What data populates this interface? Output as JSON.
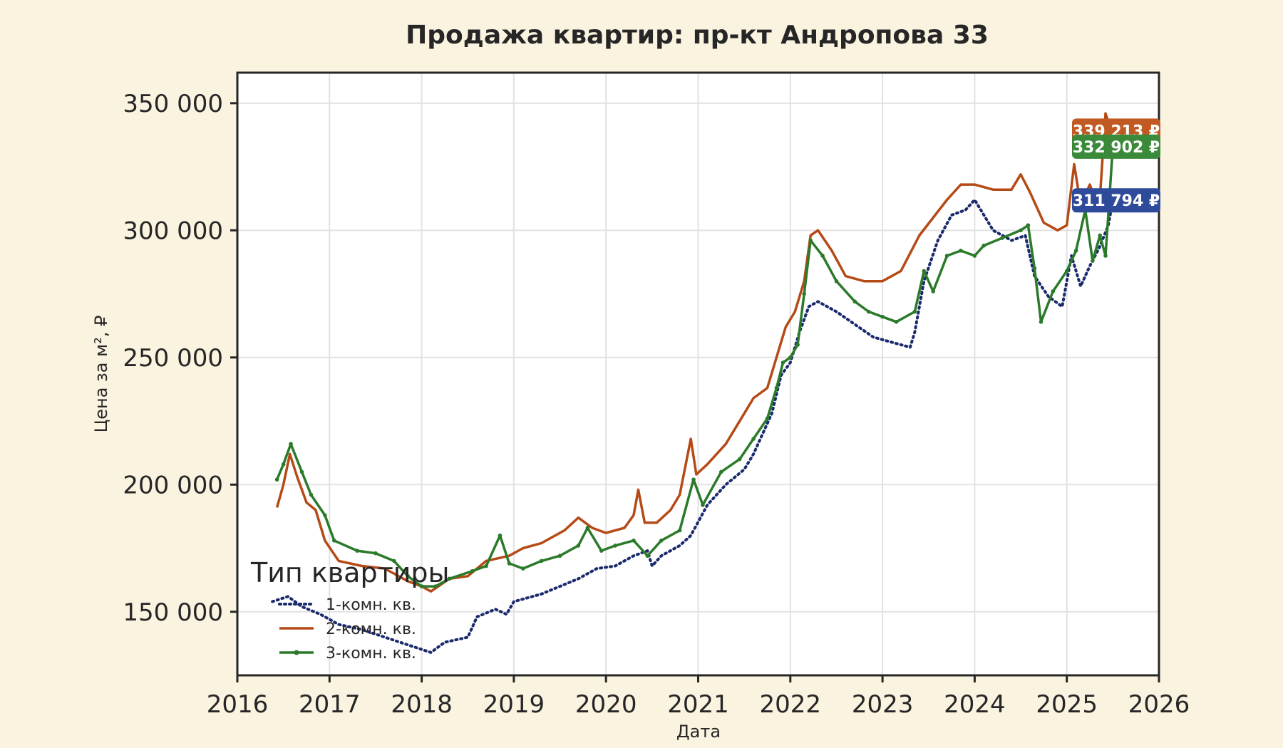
{
  "chart_data": {
    "type": "line",
    "title": "Продажа квартир: пр-кт Андропова 33",
    "xlabel": "Дата",
    "ylabel": "Цена за м², ₽",
    "xlim": [
      2016,
      2026
    ],
    "ylim": [
      125000,
      362000
    ],
    "x_ticks": [
      "2016",
      "2017",
      "2018",
      "2019",
      "2020",
      "2021",
      "2022",
      "2023",
      "2024",
      "2025",
      "2026"
    ],
    "y_ticks": [
      "150 000",
      "200 000",
      "250 000",
      "300 000",
      "350 000"
    ],
    "grid": true,
    "legend": {
      "title": "Тип квартиры",
      "placement": "lower-left"
    },
    "series": [
      {
        "name": "1-комн. кв.",
        "color": "#1a2a6c",
        "style": "dotted",
        "end_label": "311 794 ₽",
        "label_color": "#2e4b9b",
        "points": [
          [
            2016.38,
            154000
          ],
          [
            2016.55,
            156000
          ],
          [
            2016.7,
            152000
          ],
          [
            2016.9,
            149000
          ],
          [
            2017.1,
            145000
          ],
          [
            2017.35,
            143000
          ],
          [
            2017.6,
            140000
          ],
          [
            2017.85,
            137000
          ],
          [
            2018.1,
            134000
          ],
          [
            2018.25,
            138000
          ],
          [
            2018.5,
            140000
          ],
          [
            2018.6,
            148000
          ],
          [
            2018.8,
            151000
          ],
          [
            2018.92,
            149000
          ],
          [
            2019.0,
            154000
          ],
          [
            2019.3,
            157000
          ],
          [
            2019.5,
            160000
          ],
          [
            2019.7,
            163000
          ],
          [
            2019.9,
            167000
          ],
          [
            2020.1,
            168000
          ],
          [
            2020.3,
            172000
          ],
          [
            2020.45,
            174000
          ],
          [
            2020.5,
            168000
          ],
          [
            2020.6,
            172000
          ],
          [
            2020.8,
            176000
          ],
          [
            2020.92,
            180000
          ],
          [
            2021.1,
            192000
          ],
          [
            2021.3,
            200000
          ],
          [
            2021.5,
            206000
          ],
          [
            2021.6,
            212000
          ],
          [
            2021.8,
            228000
          ],
          [
            2021.9,
            243000
          ],
          [
            2022.0,
            248000
          ],
          [
            2022.1,
            260000
          ],
          [
            2022.2,
            270000
          ],
          [
            2022.3,
            272000
          ],
          [
            2022.5,
            268000
          ],
          [
            2022.7,
            263000
          ],
          [
            2022.9,
            258000
          ],
          [
            2023.1,
            256000
          ],
          [
            2023.3,
            254000
          ],
          [
            2023.35,
            260000
          ],
          [
            2023.45,
            280000
          ],
          [
            2023.6,
            296000
          ],
          [
            2023.75,
            306000
          ],
          [
            2023.9,
            308000
          ],
          [
            2024.0,
            312000
          ],
          [
            2024.2,
            300000
          ],
          [
            2024.4,
            296000
          ],
          [
            2024.55,
            298000
          ],
          [
            2024.65,
            282000
          ],
          [
            2024.8,
            274000
          ],
          [
            2024.95,
            270000
          ],
          [
            2025.05,
            290000
          ],
          [
            2025.15,
            278000
          ],
          [
            2025.25,
            286000
          ],
          [
            2025.35,
            293000
          ],
          [
            2025.45,
            302000
          ],
          [
            2025.5,
            311794
          ]
        ]
      },
      {
        "name": "2-комн. кв.",
        "color": "#b54a17",
        "style": "solid",
        "end_label": "339 213 ₽",
        "label_color": "#c05a22",
        "points": [
          [
            2016.43,
            191000
          ],
          [
            2016.5,
            200000
          ],
          [
            2016.57,
            212000
          ],
          [
            2016.65,
            203000
          ],
          [
            2016.75,
            193000
          ],
          [
            2016.85,
            190000
          ],
          [
            2016.95,
            178000
          ],
          [
            2017.1,
            170000
          ],
          [
            2017.35,
            168000
          ],
          [
            2017.6,
            167000
          ],
          [
            2017.85,
            162000
          ],
          [
            2018.0,
            160000
          ],
          [
            2018.1,
            158000
          ],
          [
            2018.3,
            163000
          ],
          [
            2018.5,
            164000
          ],
          [
            2018.7,
            170000
          ],
          [
            2018.95,
            172000
          ],
          [
            2019.1,
            175000
          ],
          [
            2019.3,
            177000
          ],
          [
            2019.55,
            182000
          ],
          [
            2019.7,
            187000
          ],
          [
            2019.85,
            183000
          ],
          [
            2020.0,
            181000
          ],
          [
            2020.2,
            183000
          ],
          [
            2020.3,
            188000
          ],
          [
            2020.35,
            198000
          ],
          [
            2020.42,
            185000
          ],
          [
            2020.55,
            185000
          ],
          [
            2020.7,
            190000
          ],
          [
            2020.8,
            196000
          ],
          [
            2020.92,
            218000
          ],
          [
            2020.98,
            204000
          ],
          [
            2021.1,
            208000
          ],
          [
            2021.3,
            216000
          ],
          [
            2021.5,
            228000
          ],
          [
            2021.6,
            234000
          ],
          [
            2021.75,
            238000
          ],
          [
            2021.85,
            250000
          ],
          [
            2021.95,
            262000
          ],
          [
            2022.05,
            268000
          ],
          [
            2022.15,
            280000
          ],
          [
            2022.22,
            298000
          ],
          [
            2022.3,
            300000
          ],
          [
            2022.45,
            292000
          ],
          [
            2022.6,
            282000
          ],
          [
            2022.8,
            280000
          ],
          [
            2023.0,
            280000
          ],
          [
            2023.2,
            284000
          ],
          [
            2023.4,
            298000
          ],
          [
            2023.55,
            305000
          ],
          [
            2023.7,
            312000
          ],
          [
            2023.85,
            318000
          ],
          [
            2024.0,
            318000
          ],
          [
            2024.2,
            316000
          ],
          [
            2024.4,
            316000
          ],
          [
            2024.5,
            322000
          ],
          [
            2024.6,
            315000
          ],
          [
            2024.75,
            303000
          ],
          [
            2024.9,
            300000
          ],
          [
            2025.0,
            302000
          ],
          [
            2025.08,
            326000
          ],
          [
            2025.15,
            310000
          ],
          [
            2025.25,
            318000
          ],
          [
            2025.35,
            308000
          ],
          [
            2025.42,
            346000
          ],
          [
            2025.48,
            339213
          ]
        ]
      },
      {
        "name": "3-комн. кв.",
        "color": "#2a7a2a",
        "style": "solid-markers",
        "end_label": "332 902 ₽",
        "label_color": "#3a8a3a",
        "points": [
          [
            2016.43,
            202000
          ],
          [
            2016.5,
            208000
          ],
          [
            2016.58,
            216000
          ],
          [
            2016.7,
            205000
          ],
          [
            2016.8,
            196000
          ],
          [
            2016.95,
            188000
          ],
          [
            2017.05,
            178000
          ],
          [
            2017.3,
            174000
          ],
          [
            2017.5,
            173000
          ],
          [
            2017.7,
            170000
          ],
          [
            2017.85,
            164000
          ],
          [
            2018.0,
            160000
          ],
          [
            2018.15,
            160000
          ],
          [
            2018.3,
            163000
          ],
          [
            2018.55,
            166000
          ],
          [
            2018.7,
            168000
          ],
          [
            2018.85,
            180000
          ],
          [
            2018.95,
            169000
          ],
          [
            2019.1,
            167000
          ],
          [
            2019.3,
            170000
          ],
          [
            2019.5,
            172000
          ],
          [
            2019.7,
            176000
          ],
          [
            2019.8,
            183000
          ],
          [
            2019.95,
            174000
          ],
          [
            2020.1,
            176000
          ],
          [
            2020.3,
            178000
          ],
          [
            2020.45,
            172000
          ],
          [
            2020.6,
            178000
          ],
          [
            2020.8,
            182000
          ],
          [
            2020.95,
            202000
          ],
          [
            2021.05,
            192000
          ],
          [
            2021.25,
            205000
          ],
          [
            2021.45,
            210000
          ],
          [
            2021.6,
            218000
          ],
          [
            2021.75,
            226000
          ],
          [
            2021.85,
            238000
          ],
          [
            2021.92,
            248000
          ],
          [
            2022.0,
            250000
          ],
          [
            2022.08,
            255000
          ],
          [
            2022.15,
            275000
          ],
          [
            2022.22,
            296000
          ],
          [
            2022.35,
            290000
          ],
          [
            2022.5,
            280000
          ],
          [
            2022.7,
            272000
          ],
          [
            2022.85,
            268000
          ],
          [
            2023.0,
            266000
          ],
          [
            2023.15,
            264000
          ],
          [
            2023.35,
            268000
          ],
          [
            2023.45,
            284000
          ],
          [
            2023.55,
            276000
          ],
          [
            2023.7,
            290000
          ],
          [
            2023.85,
            292000
          ],
          [
            2024.0,
            290000
          ],
          [
            2024.1,
            294000
          ],
          [
            2024.3,
            297000
          ],
          [
            2024.5,
            300000
          ],
          [
            2024.58,
            302000
          ],
          [
            2024.65,
            285000
          ],
          [
            2024.72,
            264000
          ],
          [
            2024.85,
            276000
          ],
          [
            2025.0,
            284000
          ],
          [
            2025.1,
            292000
          ],
          [
            2025.2,
            308000
          ],
          [
            2025.28,
            288000
          ],
          [
            2025.36,
            298000
          ],
          [
            2025.42,
            290000
          ],
          [
            2025.5,
            332902
          ]
        ]
      }
    ]
  }
}
